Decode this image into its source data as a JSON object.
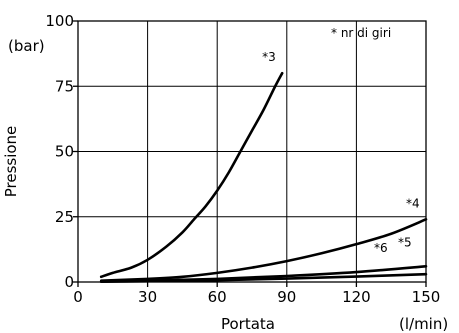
{
  "chart_data": {
    "type": "line",
    "xlabel": "Portata",
    "xunit": "(l/min)",
    "ylabel": "Pressione",
    "yunit": "(bar)",
    "xlim": [
      0,
      150
    ],
    "ylim": [
      0,
      100
    ],
    "xticks": [
      0,
      30,
      60,
      90,
      120,
      150
    ],
    "yticks": [
      0,
      25,
      50,
      75,
      100
    ],
    "grid": true,
    "annotation": "* nr di giri",
    "series": [
      {
        "name": "*3",
        "x": [
          10,
          15,
          23,
          30,
          38,
          45,
          50,
          55,
          60,
          65,
          70,
          75,
          80,
          85,
          88
        ],
        "y": [
          2,
          3.5,
          5.5,
          8.5,
          13.5,
          19,
          24,
          29,
          35,
          42,
          50,
          58,
          66,
          75,
          80
        ]
      },
      {
        "name": "*4",
        "x": [
          10,
          30,
          45,
          60,
          75,
          90,
          105,
          120,
          135,
          150
        ],
        "y": [
          0.5,
          1.2,
          2,
          3.5,
          5.5,
          8,
          11,
          14.5,
          18.5,
          24
        ]
      },
      {
        "name": "*5",
        "x": [
          10,
          30,
          60,
          90,
          120,
          150
        ],
        "y": [
          0.2,
          0.5,
          1.2,
          2.3,
          3.8,
          6
        ]
      },
      {
        "name": "*6",
        "x": [
          10,
          30,
          60,
          90,
          120,
          150
        ],
        "y": [
          0.1,
          0.3,
          0.7,
          1.3,
          2.1,
          3
        ]
      }
    ]
  }
}
